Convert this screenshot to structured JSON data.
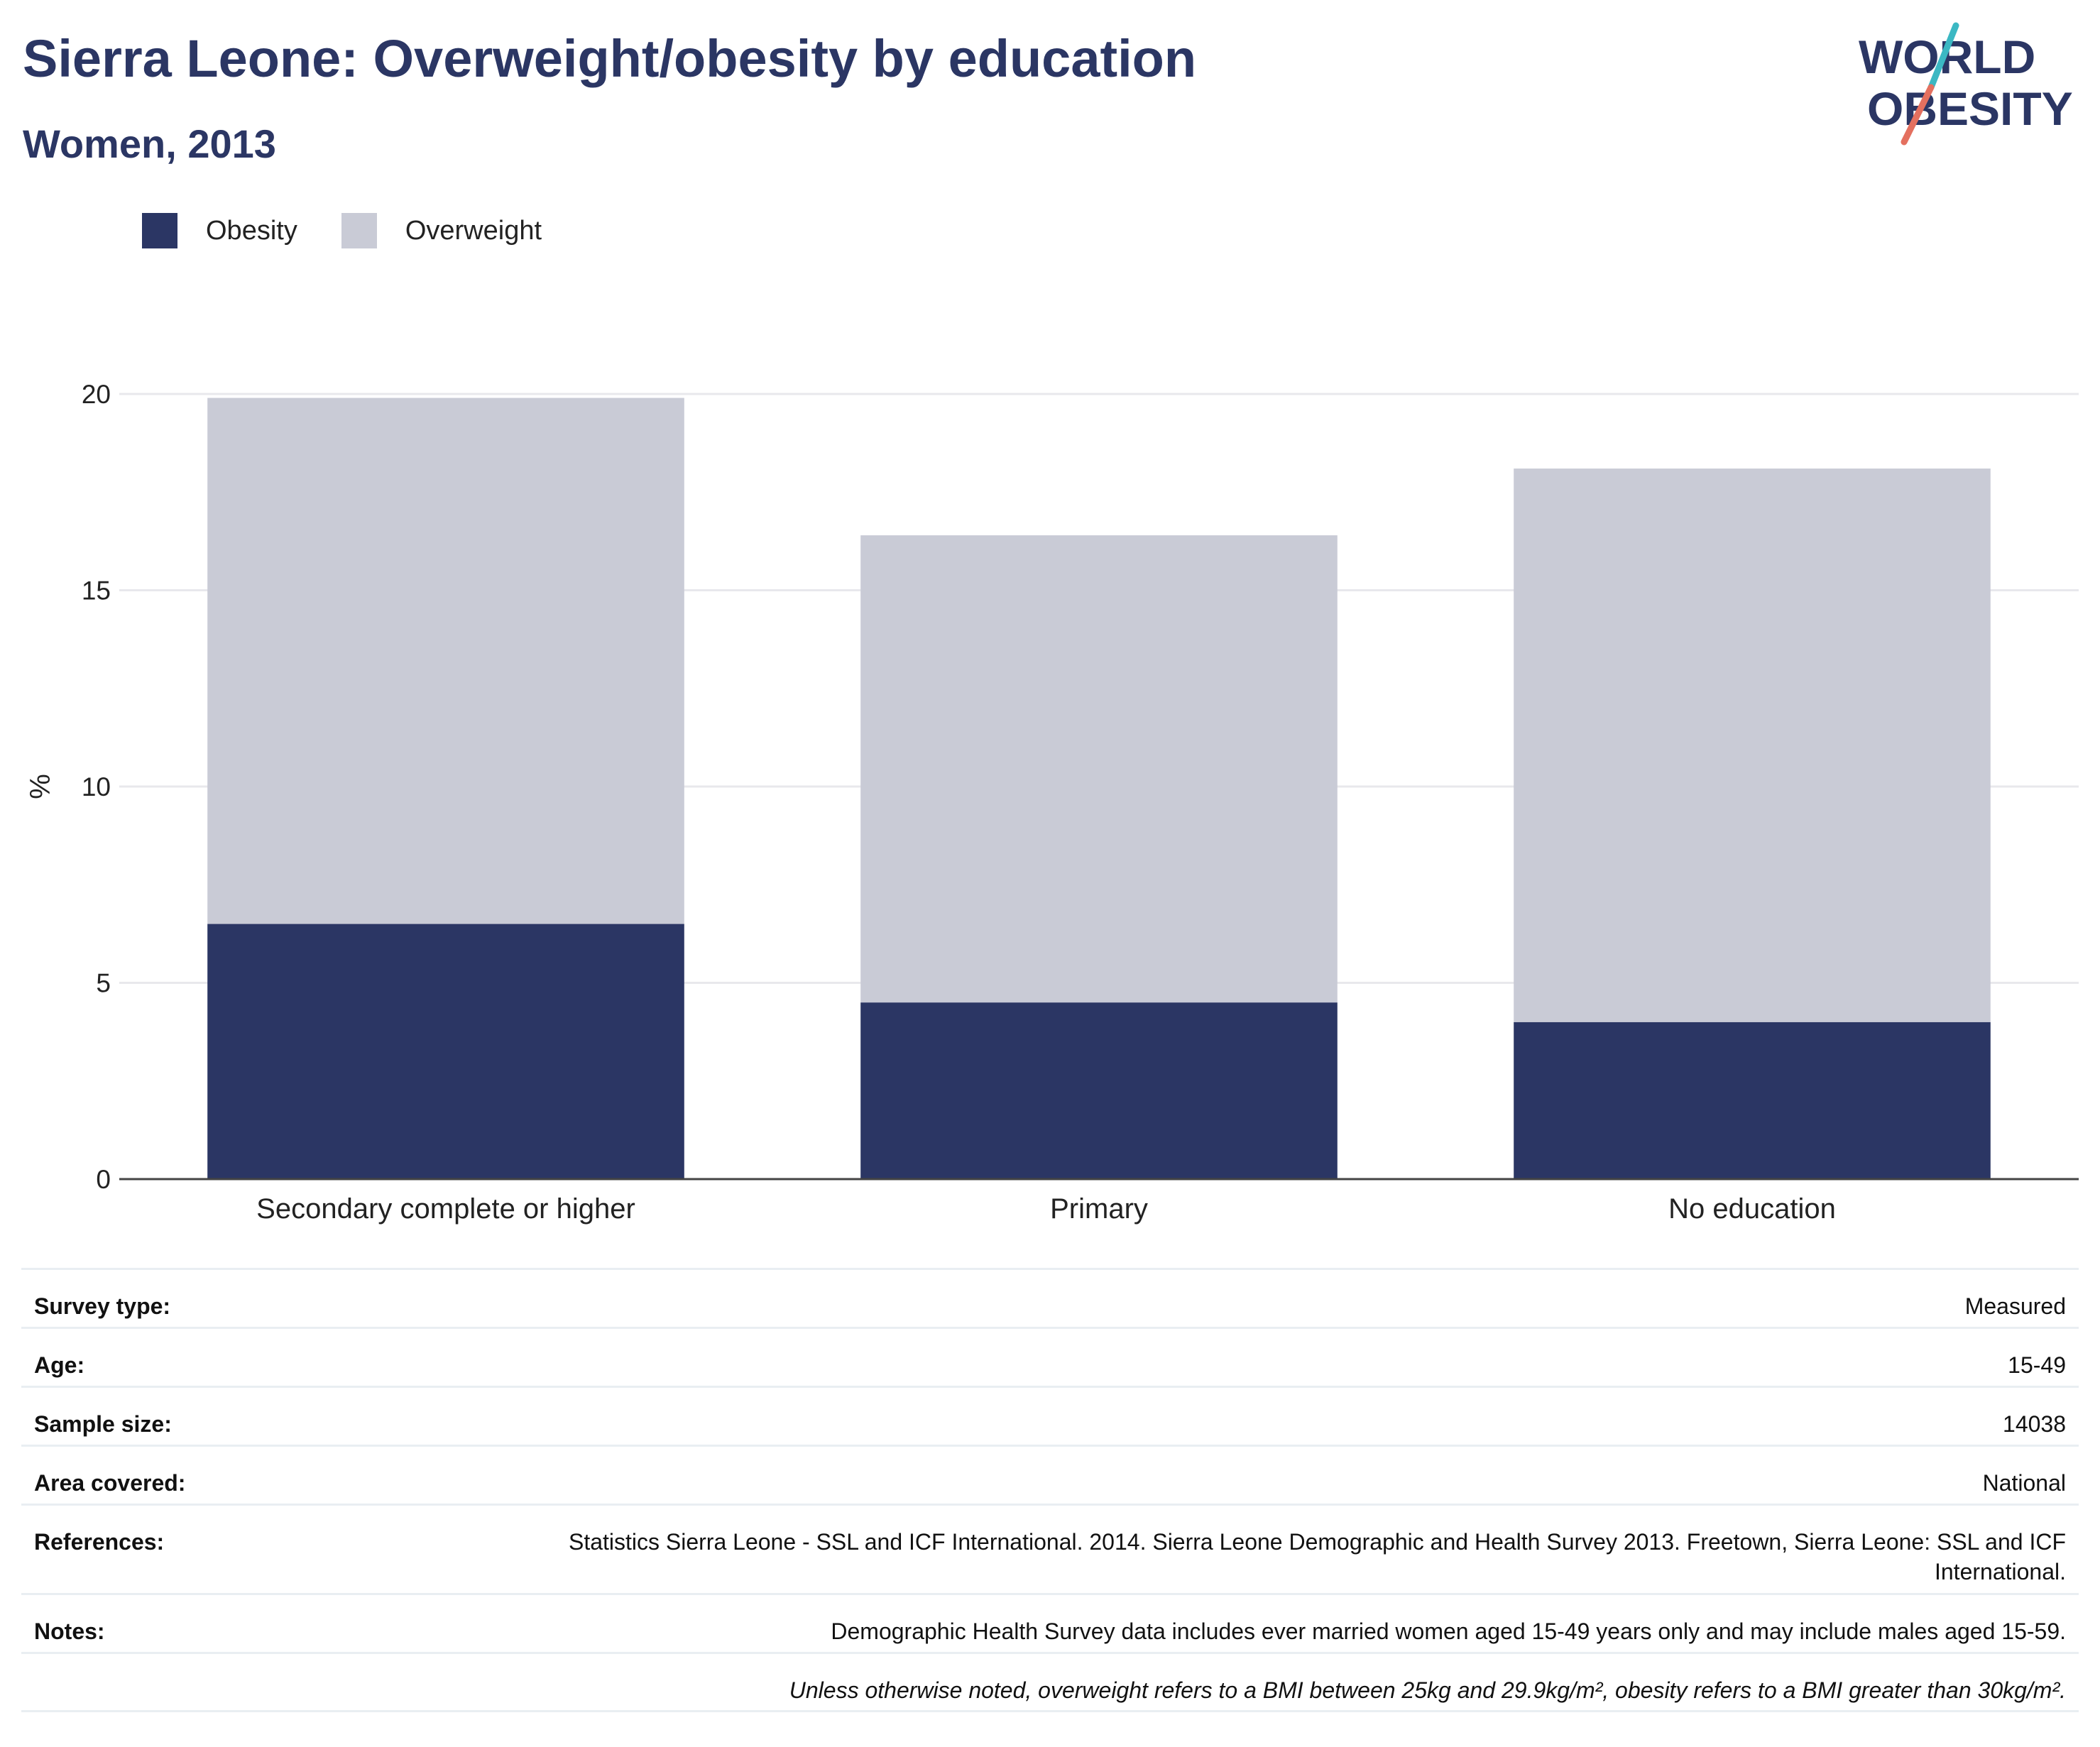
{
  "header": {
    "title": "Sierra Leone: Overweight/obesity by education",
    "subtitle": "Women, 2013"
  },
  "logo": {
    "line1": "WORLD",
    "line2": "OBESITY",
    "colors": {
      "text": "#2b3664",
      "slash_top": "#3bb8c3",
      "slash_bottom": "#e4705f"
    }
  },
  "legend": [
    {
      "label": "Obesity",
      "color": "#2b3664"
    },
    {
      "label": "Overweight",
      "color": "#c9cbd6"
    }
  ],
  "chart_data": {
    "type": "bar",
    "stacked": true,
    "categories": [
      "Secondary complete or higher",
      "Primary",
      "No education"
    ],
    "series": [
      {
        "name": "Obesity",
        "color": "#2b3664",
        "values": [
          6.5,
          4.5,
          4.0
        ]
      },
      {
        "name": "Overweight",
        "color": "#c9cbd6",
        "values": [
          13.4,
          11.9,
          14.1
        ]
      }
    ],
    "ylabel": "%",
    "xlabel": "",
    "ylim": [
      0,
      20
    ],
    "yticks": [
      0,
      5,
      10,
      15,
      20
    ],
    "grid": true,
    "legend_position": "top-left"
  },
  "info": {
    "survey_type": {
      "label": "Survey type:",
      "value": "Measured"
    },
    "age": {
      "label": "Age:",
      "value": "15-49"
    },
    "sample_size": {
      "label": "Sample size:",
      "value": "14038"
    },
    "area_covered": {
      "label": "Area covered:",
      "value": "National"
    },
    "references": {
      "label": "References:",
      "value": "Statistics Sierra Leone - SSL and ICF International. 2014. Sierra Leone Demographic and Health Survey 2013. Freetown, Sierra Leone: SSL and ICF International."
    },
    "notes": {
      "label": "Notes:",
      "value": "Demographic Health Survey data includes ever married women aged 15-49 years only and may include males aged 15-59."
    },
    "footnote": "Unless otherwise noted, overweight refers to a BMI between 25kg and 29.9kg/m², obesity refers to a BMI greater than 30kg/m²."
  }
}
